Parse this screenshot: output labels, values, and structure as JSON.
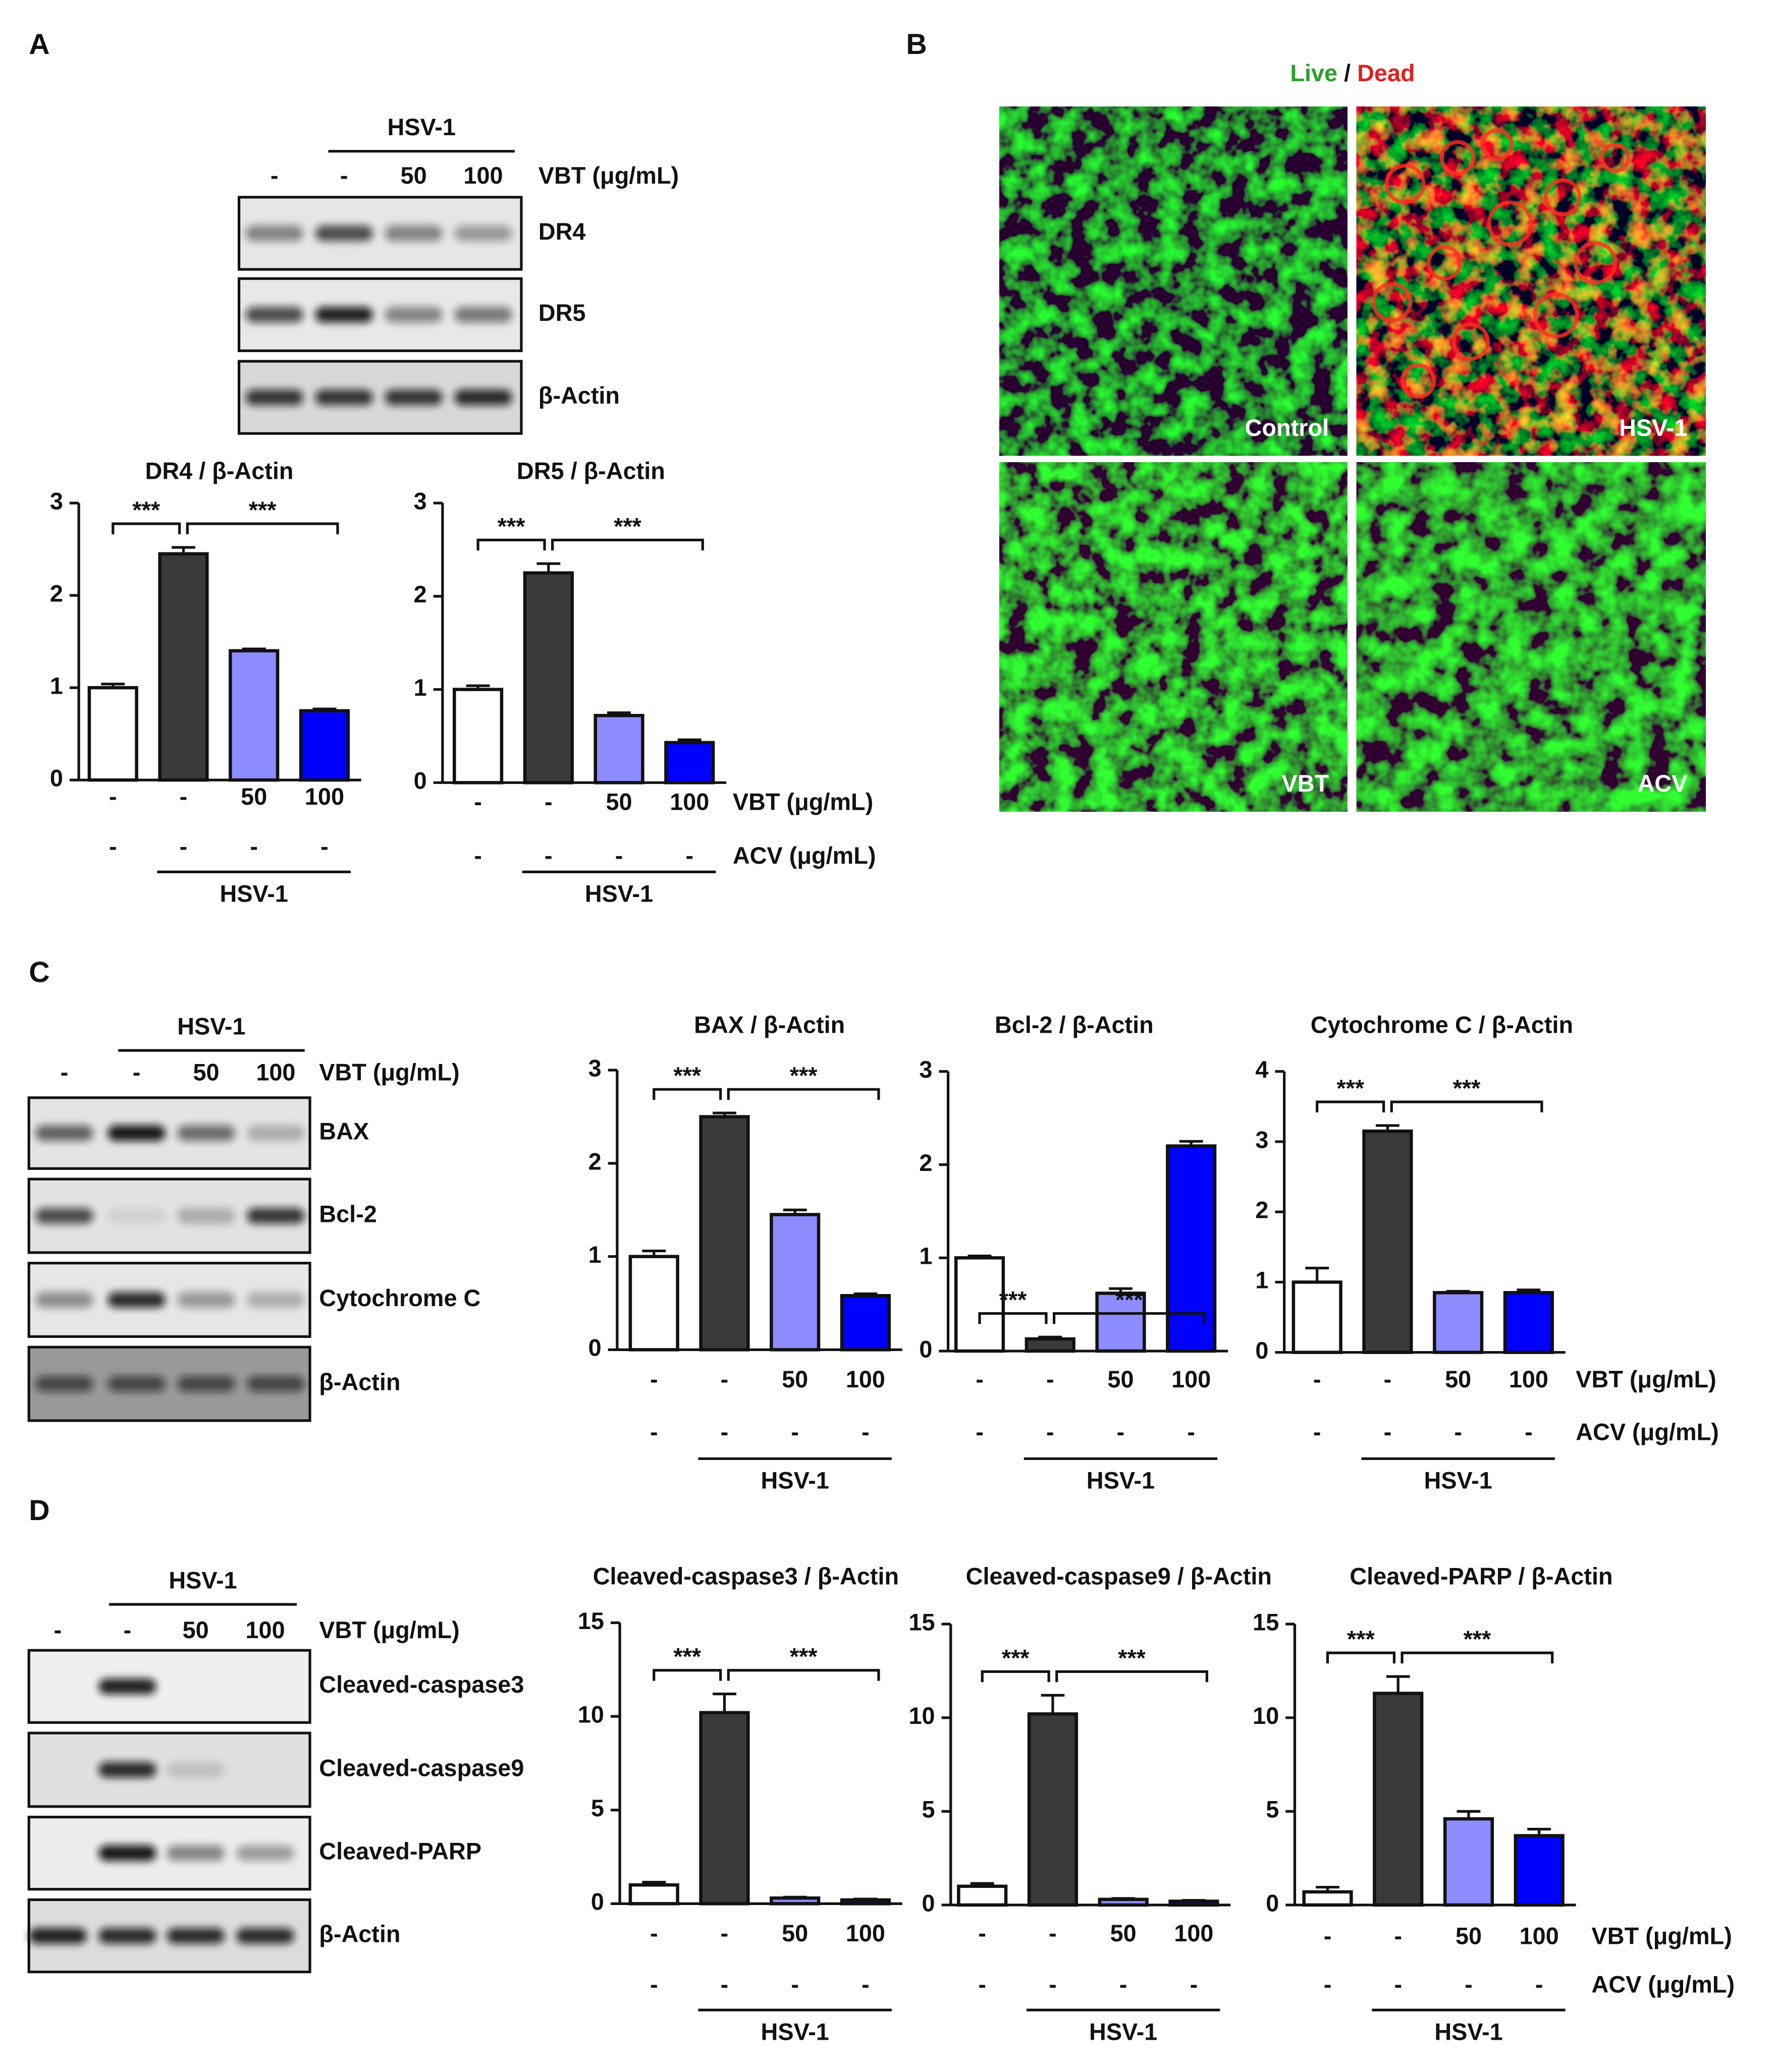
{
  "panel_labels": [
    "A",
    "B",
    "C",
    "D"
  ],
  "blots": [
    {
      "group_label": "HSV-1",
      "lanes": [
        "-",
        "-",
        "50",
        "100"
      ],
      "treatment": "VBT (μg/mL)",
      "rows": [
        "DR4",
        "DR5",
        "β-Actin"
      ]
    },
    {
      "group_label": "HSV-1",
      "lanes": [
        "-",
        "-",
        "50",
        "100"
      ],
      "treatment": "VBT (μg/mL)",
      "rows": [
        "BAX",
        "Bcl-2",
        "Cytochrome C",
        "β-Actin"
      ]
    },
    {
      "group_label": "HSV-1",
      "lanes": [
        "-",
        "-",
        "50",
        "100"
      ],
      "treatment": "VBT (μg/mL)",
      "rows": [
        "Cleaved-caspase3",
        "Cleaved-caspase9",
        "Cleaved-PARP",
        "β-Actin"
      ]
    }
  ],
  "microscopy": {
    "title_live": "Live",
    "title_sep": "/",
    "title_dead": "Dead",
    "panels": [
      "Control",
      "HSV-1",
      "VBT",
      "ACV"
    ]
  },
  "chart_data": [
    {
      "type": "bar",
      "title": "DR4 / β-Actin",
      "categories": [
        "-",
        "-",
        "50",
        "100"
      ],
      "acv_labels": [
        "-",
        "-",
        "-",
        "-"
      ],
      "group_label": "HSV-1",
      "annotations": [
        "***",
        "***"
      ],
      "values": [
        1.0,
        2.45,
        1.4,
        0.75
      ],
      "errors": [
        0.04,
        0.07,
        0.02,
        0.02
      ],
      "colors": [
        "#ffffff",
        "#3a3a3a",
        "#8c8cff",
        "#0000ff"
      ],
      "ylim": [
        0,
        3
      ],
      "yticks": [
        0,
        1,
        2,
        3
      ]
    },
    {
      "type": "bar",
      "title": "DR5 / β-Actin",
      "categories": [
        "-",
        "-",
        "50",
        "100"
      ],
      "acv_labels": [
        "-",
        "-",
        "-",
        "-"
      ],
      "group_label": "HSV-1",
      "annotations": [
        "***",
        "***"
      ],
      "x_row_labels": [
        "VBT (μg/mL)",
        "ACV (μg/mL)"
      ],
      "values": [
        1.0,
        2.25,
        0.72,
        0.43
      ],
      "errors": [
        0.04,
        0.1,
        0.03,
        0.03
      ],
      "colors": [
        "#ffffff",
        "#3a3a3a",
        "#8c8cff",
        "#0000ff"
      ],
      "ylim": [
        0,
        3
      ],
      "yticks": [
        0,
        1,
        2,
        3
      ]
    },
    {
      "type": "bar",
      "title": "BAX / β-Actin",
      "categories": [
        "-",
        "-",
        "50",
        "100"
      ],
      "acv_labels": [
        "-",
        "-",
        "-",
        "-"
      ],
      "group_label": "HSV-1",
      "annotations": [
        "***",
        "***"
      ],
      "values": [
        1.0,
        2.5,
        1.45,
        0.58
      ],
      "errors": [
        0.06,
        0.04,
        0.05,
        0.02
      ],
      "colors": [
        "#ffffff",
        "#3a3a3a",
        "#8c8cff",
        "#0000ff"
      ],
      "ylim": [
        0,
        3
      ],
      "yticks": [
        0,
        1,
        2,
        3
      ]
    },
    {
      "type": "bar",
      "title": "Bcl-2 / β-Actin",
      "categories": [
        "-",
        "-",
        "50",
        "100"
      ],
      "acv_labels": [
        "-",
        "-",
        "-",
        "-"
      ],
      "group_label": "HSV-1",
      "annotations": [
        "***",
        "***"
      ],
      "values": [
        1.0,
        0.13,
        0.62,
        2.2
      ],
      "errors": [
        0.02,
        0.02,
        0.05,
        0.05
      ],
      "colors": [
        "#ffffff",
        "#3a3a3a",
        "#8c8cff",
        "#0000ff"
      ],
      "ylim": [
        0,
        3
      ],
      "yticks": [
        0,
        1,
        2,
        3
      ]
    },
    {
      "type": "bar",
      "title": "Cytochrome C / β-Actin",
      "categories": [
        "-",
        "-",
        "50",
        "100"
      ],
      "acv_labels": [
        "-",
        "-",
        "-",
        "-"
      ],
      "group_label": "HSV-1",
      "annotations": [
        "***",
        "***"
      ],
      "x_row_labels": [
        "VBT (μg/mL)",
        "ACV (μg/mL)"
      ],
      "values": [
        1.0,
        3.15,
        0.85,
        0.85
      ],
      "errors": [
        0.2,
        0.08,
        0.02,
        0.04
      ],
      "colors": [
        "#ffffff",
        "#3a3a3a",
        "#8c8cff",
        "#0000ff"
      ],
      "ylim": [
        0,
        4
      ],
      "yticks": [
        0,
        1,
        2,
        3,
        4
      ]
    },
    {
      "type": "bar",
      "title": "Cleaved-caspase3 / β-Actin",
      "categories": [
        "-",
        "-",
        "50",
        "100"
      ],
      "acv_labels": [
        "-",
        "-",
        "-",
        "-"
      ],
      "group_label": "HSV-1",
      "annotations": [
        "***",
        "***"
      ],
      "values": [
        1.0,
        10.2,
        0.3,
        0.2
      ],
      "errors": [
        0.15,
        1.0,
        0.05,
        0.05
      ],
      "colors": [
        "#ffffff",
        "#3a3a3a",
        "#8c8cff",
        "#0000ff"
      ],
      "ylim": [
        0,
        15
      ],
      "yticks": [
        0,
        5,
        10,
        15
      ]
    },
    {
      "type": "bar",
      "title": "Cleaved-caspase9 / β-Actin",
      "categories": [
        "-",
        "-",
        "50",
        "100"
      ],
      "acv_labels": [
        "-",
        "-",
        "-",
        "-"
      ],
      "group_label": "HSV-1",
      "annotations": [
        "***",
        "***"
      ],
      "values": [
        1.0,
        10.2,
        0.3,
        0.2
      ],
      "errors": [
        0.15,
        1.0,
        0.05,
        0.05
      ],
      "colors": [
        "#ffffff",
        "#3a3a3a",
        "#8c8cff",
        "#0000ff"
      ],
      "ylim": [
        0,
        15
      ],
      "yticks": [
        0,
        5,
        10,
        15
      ]
    },
    {
      "type": "bar",
      "title": "Cleaved-PARP / β-Actin",
      "categories": [
        "-",
        "-",
        "50",
        "100"
      ],
      "acv_labels": [
        "-",
        "-",
        "-",
        "-"
      ],
      "group_label": "HSV-1",
      "annotations": [
        "***",
        "***"
      ],
      "x_row_labels": [
        "VBT (μg/mL)",
        "ACV (μg/mL)"
      ],
      "values": [
        0.7,
        11.3,
        4.6,
        3.7
      ],
      "errors": [
        0.25,
        0.9,
        0.4,
        0.35
      ],
      "colors": [
        "#ffffff",
        "#3a3a3a",
        "#8c8cff",
        "#0000ff"
      ],
      "ylim": [
        0,
        15
      ],
      "yticks": [
        0,
        5,
        10,
        15
      ]
    }
  ]
}
